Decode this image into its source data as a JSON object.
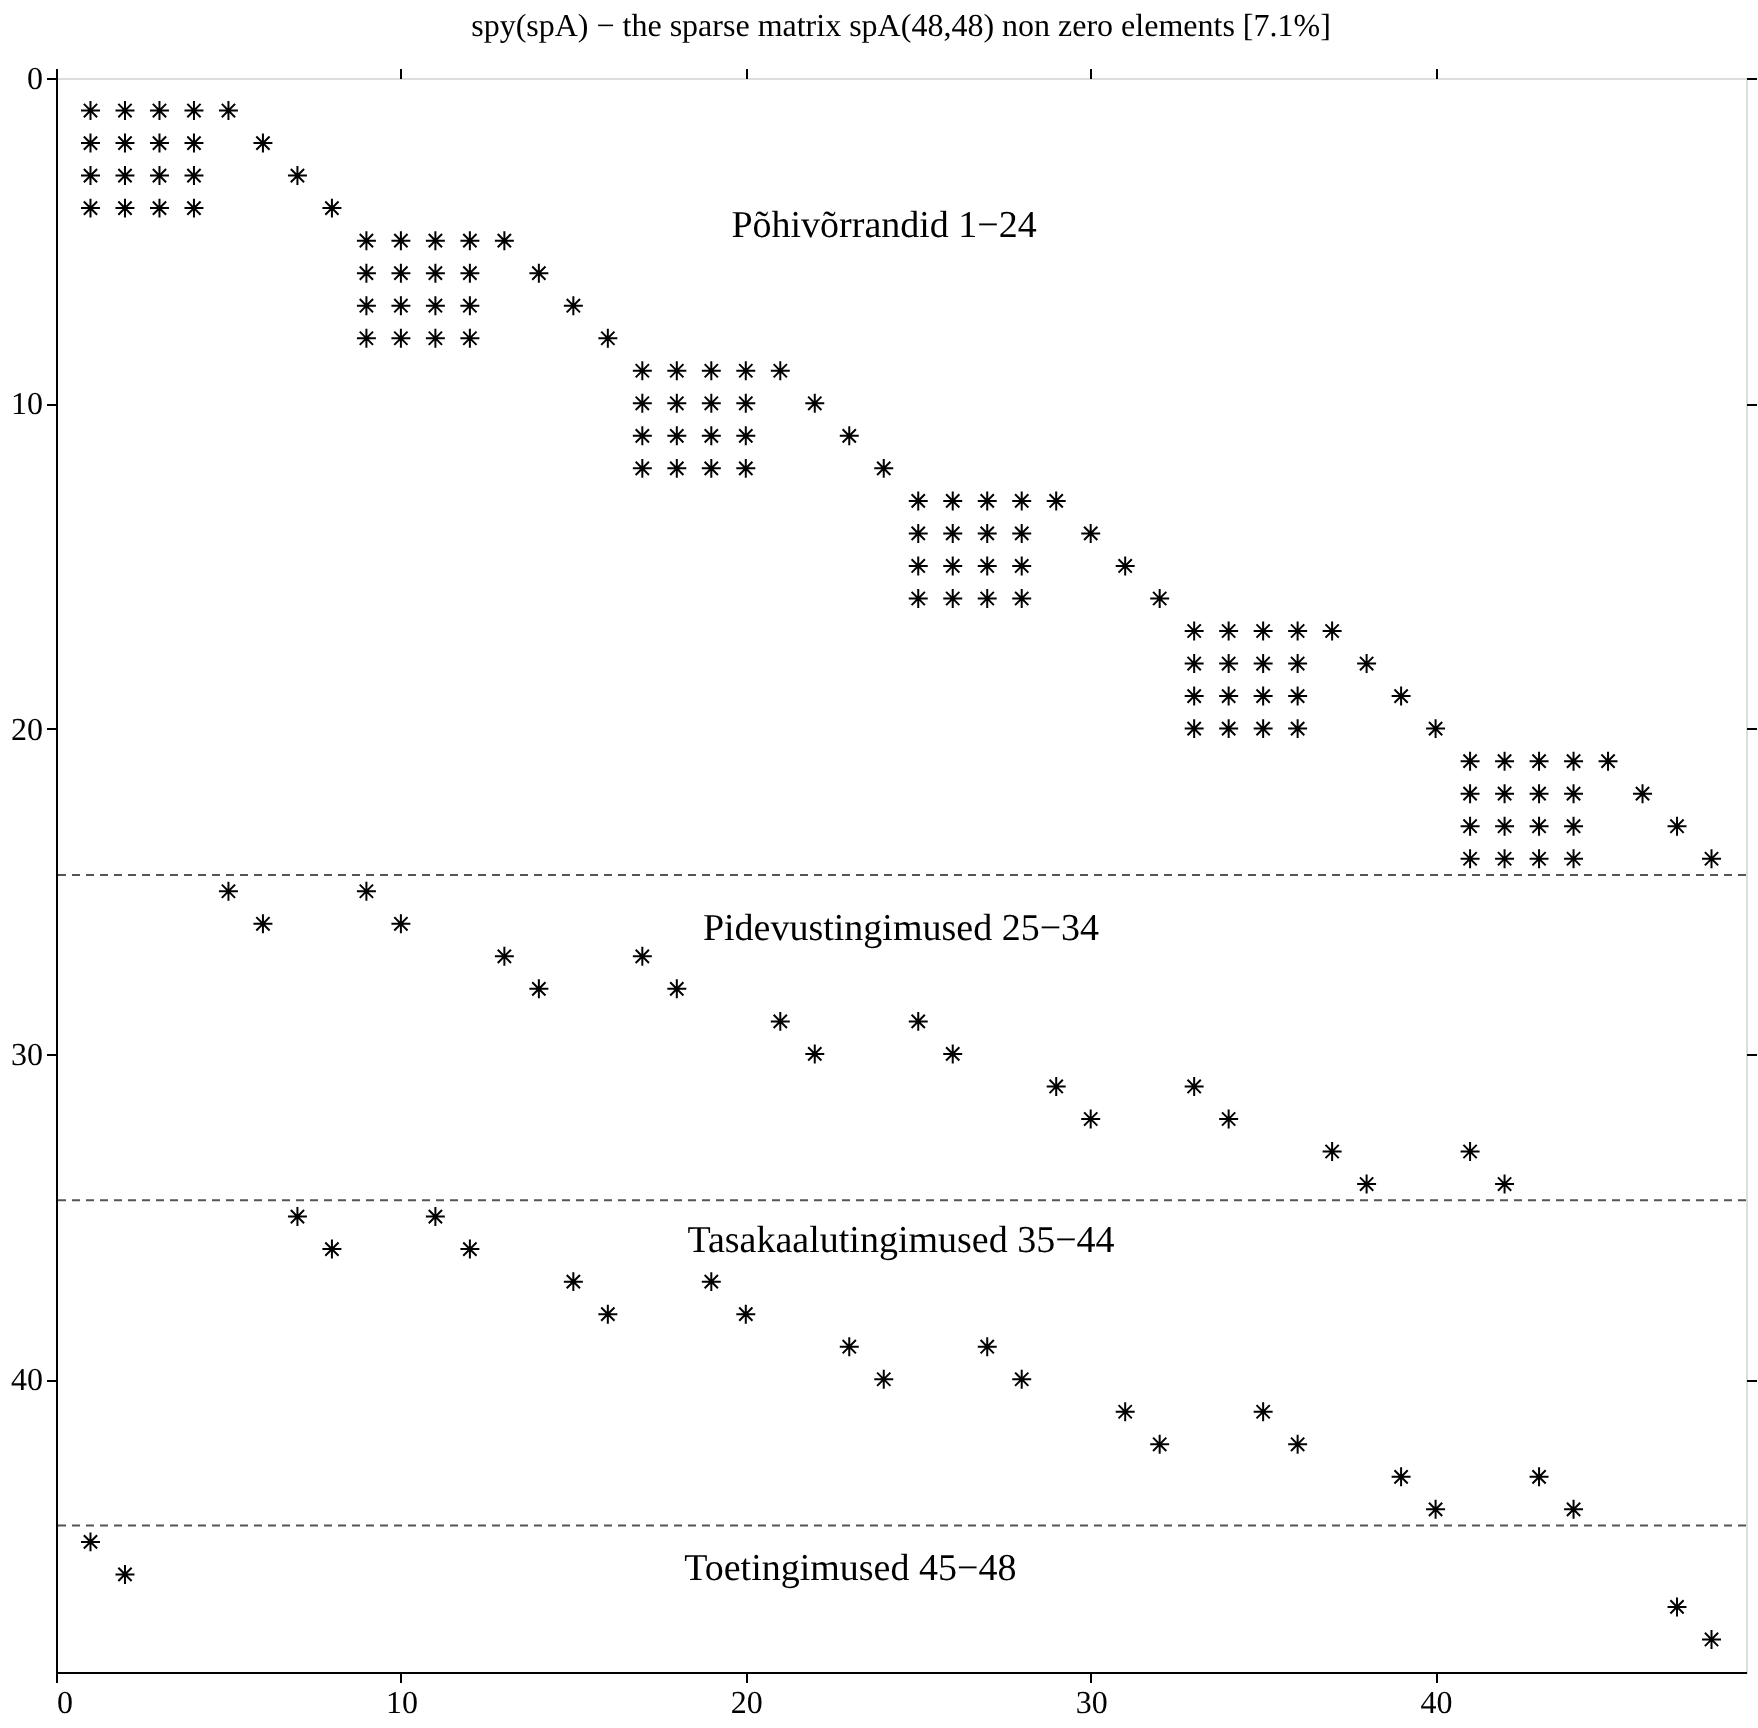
{
  "chart_data": {
    "type": "scatter",
    "title": "spy(spA) − the sparse matrix spA(48,48)  non zero elements [7.1%]",
    "marker": "cross",
    "series": [
      {
        "color": "#000000",
        "x": [
          1,
          2,
          3,
          4,
          5,
          1,
          2,
          3,
          4,
          6,
          1,
          2,
          3,
          4,
          7,
          1,
          2,
          3,
          4,
          8,
          9,
          10,
          11,
          12,
          13,
          9,
          10,
          11,
          12,
          14,
          9,
          10,
          11,
          12,
          15,
          9,
          10,
          11,
          12,
          16,
          17,
          18,
          19,
          20,
          21,
          17,
          18,
          19,
          20,
          22,
          17,
          18,
          19,
          20,
          23,
          17,
          18,
          19,
          20,
          24,
          25,
          26,
          27,
          28,
          29,
          25,
          26,
          27,
          28,
          30,
          25,
          26,
          27,
          28,
          31,
          25,
          26,
          27,
          28,
          32,
          33,
          34,
          35,
          36,
          37,
          33,
          34,
          35,
          36,
          38,
          33,
          34,
          35,
          36,
          39,
          33,
          34,
          35,
          36,
          40,
          41,
          42,
          43,
          44,
          45,
          41,
          42,
          43,
          44,
          46,
          41,
          42,
          43,
          44,
          47,
          41,
          42,
          43,
          44,
          48,
          5,
          9,
          6,
          10,
          13,
          17,
          14,
          18,
          21,
          25,
          22,
          26,
          29,
          33,
          30,
          34,
          37,
          41,
          38,
          42,
          7,
          11,
          8,
          12,
          15,
          19,
          16,
          20,
          23,
          27,
          24,
          28,
          31,
          35,
          32,
          36,
          39,
          43,
          40,
          44,
          1,
          2,
          47,
          48
        ],
        "values": [
          1,
          1,
          1,
          1,
          1,
          2,
          2,
          2,
          2,
          2,
          3,
          3,
          3,
          3,
          3,
          4,
          4,
          4,
          4,
          4,
          5,
          5,
          5,
          5,
          5,
          6,
          6,
          6,
          6,
          6,
          7,
          7,
          7,
          7,
          7,
          8,
          8,
          8,
          8,
          8,
          9,
          9,
          9,
          9,
          9,
          10,
          10,
          10,
          10,
          10,
          11,
          11,
          11,
          11,
          11,
          12,
          12,
          12,
          12,
          12,
          13,
          13,
          13,
          13,
          13,
          14,
          14,
          14,
          14,
          14,
          15,
          15,
          15,
          15,
          15,
          16,
          16,
          16,
          16,
          16,
          17,
          17,
          17,
          17,
          17,
          18,
          18,
          18,
          18,
          18,
          19,
          19,
          19,
          19,
          19,
          20,
          20,
          20,
          20,
          20,
          21,
          21,
          21,
          21,
          21,
          22,
          22,
          22,
          22,
          22,
          23,
          23,
          23,
          23,
          23,
          24,
          24,
          24,
          24,
          24,
          25,
          25,
          26,
          26,
          27,
          27,
          28,
          28,
          29,
          29,
          30,
          30,
          31,
          31,
          32,
          32,
          33,
          33,
          34,
          34,
          35,
          35,
          36,
          36,
          37,
          37,
          38,
          38,
          39,
          39,
          40,
          40,
          41,
          41,
          42,
          42,
          43,
          43,
          44,
          44,
          45,
          46,
          47,
          48
        ]
      }
    ],
    "xlim": [
      0,
      49
    ],
    "ylim": [
      49,
      0
    ],
    "xticks": [
      0,
      10,
      20,
      30,
      40
    ],
    "yticks": [
      0,
      10,
      20,
      30,
      40
    ],
    "grid": false,
    "ref_lines": [
      {
        "axis": "y",
        "value": 24.5,
        "color": "#555555",
        "line_style": "dashed"
      },
      {
        "axis": "y",
        "value": 34.5,
        "color": "#555555",
        "line_style": "dashed"
      },
      {
        "axis": "y",
        "value": 44.5,
        "color": "#555555",
        "line_style": "dashed"
      }
    ],
    "annotations": [
      "Põhivõrrandid 1−24",
      "Pidevustingimused 25−34",
      "Tasakaalutingimused 35−44",
      "Toetingimused 45−48"
    ]
  }
}
